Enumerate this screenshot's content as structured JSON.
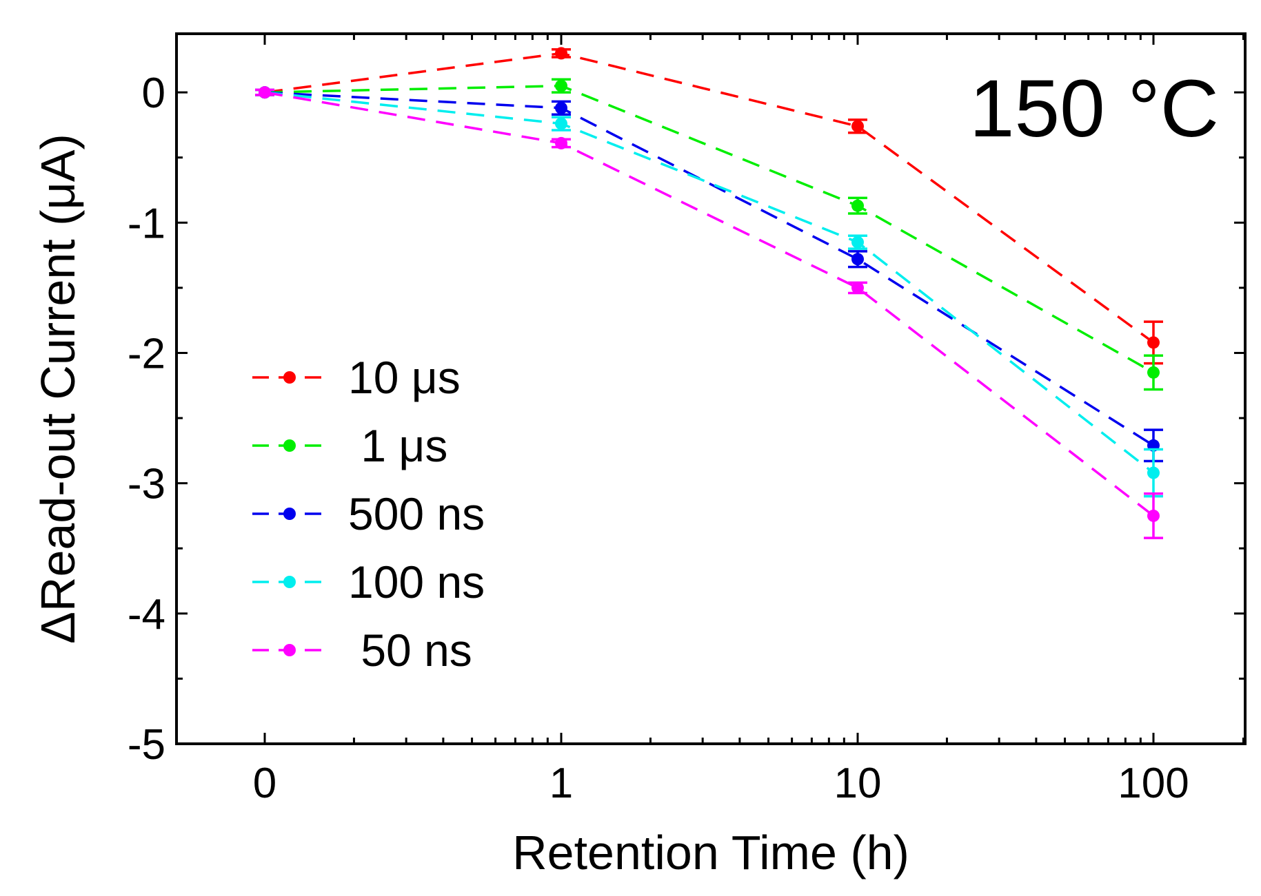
{
  "chart_data": {
    "type": "line",
    "xlabel": "Retention Time (h)",
    "ylabel": "ΔRead-out Current (μA)",
    "annotation": "150 °C",
    "x_scale": "log, with an extra 0 point",
    "x_tick_labels": [
      "0",
      "1",
      "10",
      "100"
    ],
    "x_values": [
      0,
      1,
      10,
      100
    ],
    "ylim": [
      -5,
      0.45
    ],
    "y_ticks": [
      0,
      -1,
      -2,
      -3,
      -4,
      -5
    ],
    "grid": false,
    "legend_position": "lower-left",
    "line_style": "dashed",
    "series": [
      {
        "name": "10 μs",
        "color": "#ff0000",
        "values": [
          0,
          0.3,
          -0.26,
          -1.92
        ],
        "errors": [
          0.02,
          0.03,
          0.05,
          0.16
        ]
      },
      {
        "name": " 1 μs",
        "color": "#00ee00",
        "values": [
          0,
          0.05,
          -0.87,
          -2.15
        ],
        "errors": [
          0.02,
          0.05,
          0.06,
          0.13
        ]
      },
      {
        "name": "500 ns",
        "color": "#0000ee",
        "values": [
          0,
          -0.12,
          -1.28,
          -2.71
        ],
        "errors": [
          0.02,
          0.05,
          0.06,
          0.12
        ]
      },
      {
        "name": "100 ns",
        "color": "#00eeee",
        "values": [
          0,
          -0.24,
          -1.15,
          -2.92
        ],
        "errors": [
          0.02,
          0.05,
          0.05,
          0.18
        ]
      },
      {
        "name": " 50 ns",
        "color": "#ff00ff",
        "values": [
          0,
          -0.39,
          -1.5,
          -3.25
        ],
        "errors": [
          0.02,
          0.03,
          0.04,
          0.17
        ]
      }
    ]
  }
}
